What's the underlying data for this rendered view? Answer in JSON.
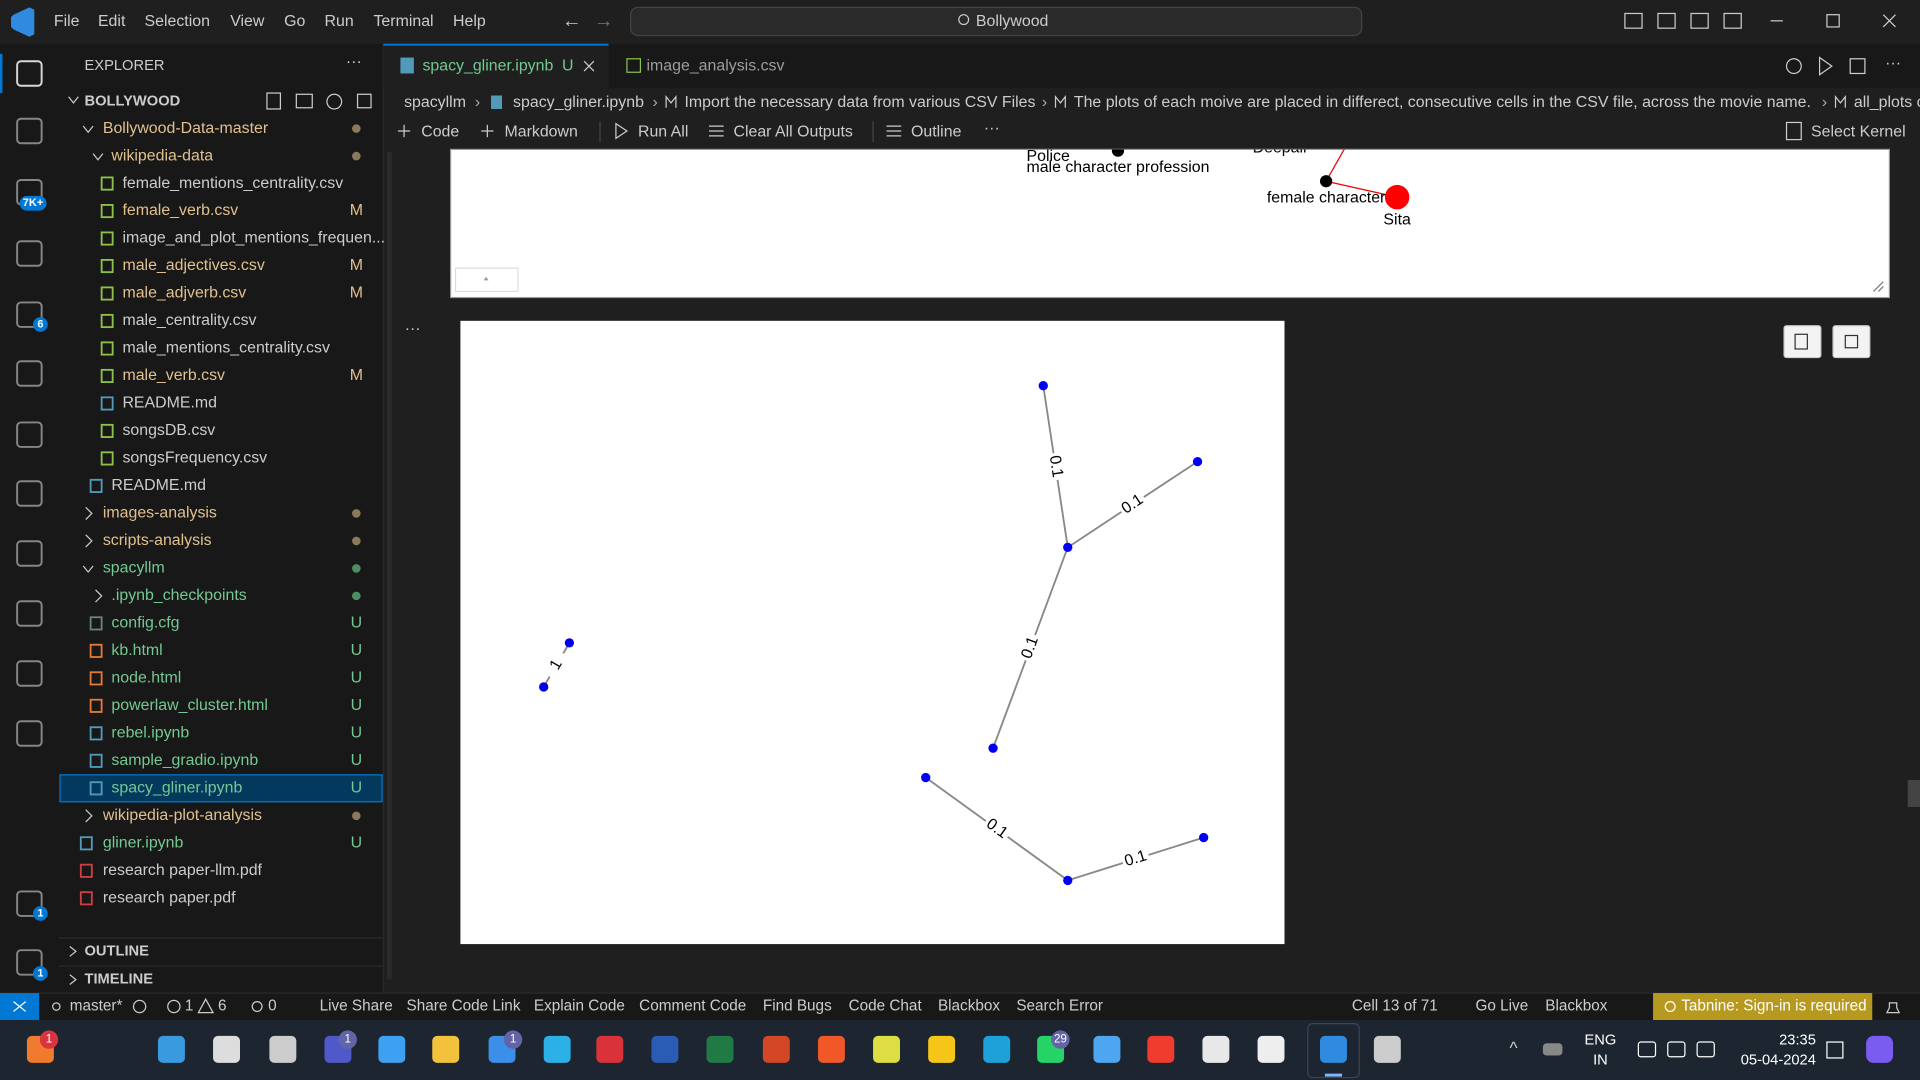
{
  "title_bar": {
    "menu": [
      "File",
      "Edit",
      "Selection",
      "View",
      "Go",
      "Run",
      "Terminal",
      "Help"
    ],
    "search": "Bollywood"
  },
  "activity_badges": [
    "7K+",
    "6",
    "1",
    "1"
  ],
  "sidebar": {
    "title": "EXPLORER",
    "root": "BOLLYWOOD",
    "items": [
      {
        "label": "Bollywood-Data-master",
        "icon": "folder-open",
        "decoration": "modified"
      },
      {
        "label": "wikipedia-data",
        "icon": "folder-open",
        "decoration": "modified"
      },
      {
        "label": "female_mentions_centrality.csv",
        "icon": "csv"
      },
      {
        "label": "female_verb.csv",
        "icon": "csv",
        "status": "M"
      },
      {
        "label": "image_and_plot_mentions_frequen...",
        "icon": "csv"
      },
      {
        "label": "male_adjectives.csv",
        "icon": "csv",
        "status": "M"
      },
      {
        "label": "male_adjverb.csv",
        "icon": "csv",
        "status": "M"
      },
      {
        "label": "male_centrality.csv",
        "icon": "csv"
      },
      {
        "label": "male_mentions_centrality.csv",
        "icon": "csv"
      },
      {
        "label": "male_verb.csv",
        "icon": "csv",
        "status": "M"
      },
      {
        "label": "README.md",
        "icon": "info"
      },
      {
        "label": "songsDB.csv",
        "icon": "csv"
      },
      {
        "label": "songsFrequency.csv",
        "icon": "csv"
      },
      {
        "label": "README.md",
        "icon": "info"
      },
      {
        "label": "images-analysis",
        "icon": "folder",
        "decoration": "modified"
      },
      {
        "label": "scripts-analysis",
        "icon": "folder",
        "decoration": "modified"
      },
      {
        "label": "spacyllm",
        "icon": "folder-open",
        "decoration": "untracked"
      },
      {
        "label": ".ipynb_checkpoints",
        "icon": "folder",
        "decoration": "untracked"
      },
      {
        "label": "config.cfg",
        "icon": "cfg",
        "status": "U"
      },
      {
        "label": "kb.html",
        "icon": "html",
        "status": "U"
      },
      {
        "label": "node.html",
        "icon": "html",
        "status": "U"
      },
      {
        "label": "powerlaw_cluster.html",
        "icon": "html",
        "status": "U"
      },
      {
        "label": "rebel.ipynb",
        "icon": "ipynb",
        "status": "U"
      },
      {
        "label": "sample_gradio.ipynb",
        "icon": "ipynb",
        "status": "U"
      },
      {
        "label": "spacy_gliner.ipynb",
        "icon": "ipynb",
        "status": "U",
        "selected": true
      },
      {
        "label": "wikipedia-plot-analysis",
        "icon": "folder",
        "decoration": "modified"
      },
      {
        "label": "gliner.ipynb",
        "icon": "ipynb",
        "status": "U"
      },
      {
        "label": "research paper-llm.pdf",
        "icon": "pdf"
      },
      {
        "label": "research paper.pdf",
        "icon": "pdf"
      }
    ],
    "sections": [
      "OUTLINE",
      "TIMELINE"
    ]
  },
  "tabs": [
    {
      "label": "spacy_gliner.ipynb",
      "status": "U"
    },
    {
      "label": "image_analysis.csv"
    }
  ],
  "breadcrumb": [
    "spacyllm",
    "spacy_gliner.ipynb",
    "Import the necessary data from various CSV Files",
    "The plots of each moive are placed in differect, consecutive cells in the CSV file, across the movie name.",
    "all_plots c"
  ],
  "toolbar": {
    "left": [
      "Code",
      "Markdown",
      "Run All",
      "Clear All Outputs",
      "Outline"
    ],
    "right": "Select Kernel"
  },
  "output_top": {
    "labels": [
      "Police",
      "male character profession",
      "Deepali",
      "female character",
      "Sita"
    ]
  },
  "output_graph": {
    "edge_labels": [
      0.1,
      0.1,
      0.1,
      1,
      0.1,
      0.1
    ]
  },
  "status_bar": {
    "branch": "master*",
    "errors": 1,
    "warnings": 6,
    "ports": 0,
    "items": [
      "Live Share",
      "Share Code Link",
      "Explain Code",
      "Comment Code",
      "Find Bugs",
      "Code Chat",
      "Blackbox",
      "Search Error"
    ],
    "cell": "Cell 13 of 71",
    "right_items": [
      "Go Live",
      "Blackbox"
    ],
    "tabnine": "Tabnine: Sign-in is required"
  },
  "taskbar": {
    "badges": [
      1,
      1,
      1,
      29
    ],
    "language": "ENG",
    "region": "IN",
    "time": "23:35",
    "date": "05-04-2024"
  }
}
